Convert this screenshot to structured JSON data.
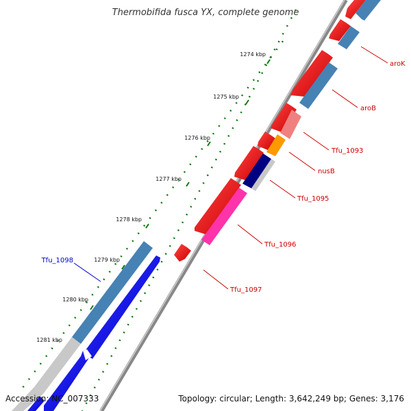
{
  "title": "Thermobifida fusca YX, complete genome",
  "footer": {
    "accession": "Accession: NC_007333",
    "summary": "Topology: circular; Length: 3,642,249 bp; Genes: 3,176"
  },
  "scale_labels": [
    "1274 kbp",
    "1275 kbp",
    "1276 kbp",
    "1277 kbp",
    "1278 kbp",
    "1279 kbp",
    "1280 kbp",
    "1281 kbp"
  ],
  "gene_labels": [
    {
      "name": "aroK",
      "color": "#cc0000"
    },
    {
      "name": "aroB",
      "color": "#cc0000"
    },
    {
      "name": "Tfu_1093",
      "color": "#cc0000"
    },
    {
      "name": "nusB",
      "color": "#cc0000"
    },
    {
      "name": "Tfu_1095",
      "color": "#cc0000"
    },
    {
      "name": "Tfu_1096",
      "color": "#cc0000"
    },
    {
      "name": "Tfu_1097",
      "color": "#cc0000"
    },
    {
      "name": "Tfu_1098",
      "color": "#0000cc"
    }
  ],
  "colors": {
    "cds_forward": "#ff0000",
    "cds_reverse": "#0000ff",
    "cog_steelblue": "#4682b4",
    "cog_salmon": "#f08080",
    "cog_orange": "#ff9900",
    "cog_navy": "#000080",
    "cog_pink": "#ff33aa",
    "cog_gray": "#c8c8c8",
    "backbone": "#888888",
    "tick": "#117711"
  }
}
